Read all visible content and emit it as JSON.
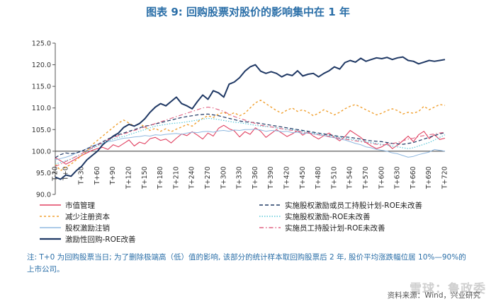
{
  "title": "图表 9:  回购股票对股价的影响集中在 1 年",
  "note": "注: T+0 为回购股票当日; 为了删除极端高（低）值的影响, 该部分的统计样本取回购股票后 2 年, 股价平均涨跌幅位居 10%—90%的上市公司。",
  "source": "资料来源：Wind，兴业研究",
  "watermark": "雪球：鲁政委",
  "colors": {
    "roe_buyback": "#1f3864",
    "reduce_capital": "#f0a030",
    "equity_incentive_or_esop": "#1f3864",
    "equity_incentive": "#5bc8d8",
    "employee_stock": "#e06080",
    "market_value": "#e04060",
    "cancel": "#8fb8e0"
  },
  "chart_data": {
    "type": "line",
    "ylim": [
      90,
      125
    ],
    "yticks": [
      "90.0",
      "95.0",
      "100.0",
      "105.0",
      "110.0",
      "115.0",
      "120.0",
      "125.0"
    ],
    "xticks": [
      "T-20",
      "T+0",
      "T+30",
      "T+60",
      "T+90",
      "T+120",
      "T+150",
      "T+180",
      "T+210",
      "T+240",
      "T+270",
      "T+300",
      "T+330",
      "T+360",
      "T+390",
      "T+420",
      "T+450",
      "T+480",
      "T+510",
      "T+540",
      "T+570",
      "T+600",
      "T+630",
      "T+660",
      "T+690",
      "T+720"
    ],
    "xlim": [
      -20,
      720
    ],
    "series": [
      {
        "name": "市值管理",
        "color_key": "market_value",
        "dash": "solid",
        "width": 1.1,
        "x": [
          -20,
          -10,
          0,
          10,
          20,
          30,
          40,
          50,
          60,
          70,
          80,
          90,
          100,
          110,
          120,
          130,
          140,
          150,
          160,
          170,
          180,
          190,
          200,
          210,
          220,
          230,
          240,
          250,
          260,
          270,
          280,
          290,
          300,
          310,
          320,
          330,
          340,
          350,
          360,
          370,
          380,
          390,
          400,
          410,
          420,
          430,
          440,
          450,
          460,
          470,
          480,
          490,
          500,
          510,
          520,
          530,
          540,
          550,
          560,
          570,
          580,
          590,
          600,
          610,
          620,
          630,
          640,
          650,
          660,
          670,
          680,
          690,
          700,
          710,
          720
        ],
        "y": [
          98.5,
          97.8,
          97.0,
          97.6,
          98.3,
          99.0,
          99.6,
          100.2,
          100.6,
          100.9,
          100.4,
          101.5,
          101.0,
          101.8,
          102.6,
          101.2,
          102.1,
          101.7,
          102.9,
          103.2,
          102.5,
          102.8,
          101.9,
          103.0,
          104.0,
          103.6,
          104.5,
          103.7,
          102.8,
          104.2,
          103.5,
          105.3,
          106.0,
          105.2,
          104.7,
          103.3,
          104.5,
          103.9,
          105.4,
          104.6,
          103.2,
          104.1,
          105.0,
          104.2,
          103.4,
          104.0,
          104.8,
          103.7,
          104.5,
          103.5,
          102.8,
          103.6,
          104.2,
          103.2,
          102.4,
          103.4,
          104.8,
          104.0,
          103.2,
          102.0,
          101.2,
          100.6,
          101.0,
          101.8,
          100.6,
          101.4,
          102.4,
          103.5,
          102.2,
          103.8,
          104.6,
          102.9,
          103.8,
          102.7,
          103.0
        ]
      },
      {
        "name": "减少注册资本",
        "color_key": "reduce_capital",
        "dash": "3,3",
        "width": 1.4,
        "x": [
          -20,
          -10,
          0,
          10,
          20,
          30,
          40,
          50,
          60,
          70,
          80,
          90,
          100,
          110,
          120,
          130,
          140,
          150,
          160,
          170,
          180,
          190,
          200,
          210,
          220,
          230,
          240,
          250,
          260,
          270,
          280,
          290,
          300,
          310,
          320,
          330,
          340,
          350,
          360,
          370,
          380,
          390,
          400,
          410,
          420,
          430,
          440,
          450,
          460,
          470,
          480,
          490,
          500,
          510,
          520,
          530,
          540,
          550,
          560,
          570,
          580,
          590,
          600,
          610,
          620,
          630,
          640,
          650,
          660,
          670,
          680,
          690,
          700,
          710,
          720
        ],
        "y": [
          97.0,
          95.5,
          96.3,
          97.0,
          98.0,
          99.0,
          100.0,
          101.5,
          102.5,
          103.5,
          104.5,
          105.5,
          106.5,
          107.2,
          106.5,
          105.8,
          106.4,
          105.6,
          104.8,
          105.3,
          104.6,
          105.2,
          104.5,
          105.1,
          105.6,
          106.2,
          105.8,
          106.8,
          107.6,
          108.2,
          107.8,
          108.6,
          109.0,
          108.4,
          108.9,
          108.2,
          108.8,
          110.0,
          111.2,
          111.8,
          111.0,
          110.2,
          109.4,
          108.8,
          109.5,
          110.0,
          109.2,
          109.6,
          109.0,
          108.2,
          108.8,
          109.6,
          109.0,
          108.4,
          109.0,
          109.8,
          110.4,
          110.8,
          110.2,
          109.6,
          109.0,
          108.4,
          108.8,
          109.4,
          109.8,
          109.4,
          108.6,
          109.0,
          108.8,
          109.2,
          110.4,
          109.6,
          110.2,
          110.8,
          110.6
        ]
      },
      {
        "name": "股权激励注销",
        "color_key": "cancel",
        "dash": "solid",
        "width": 1.0,
        "x": [
          -20,
          -10,
          0,
          10,
          20,
          30,
          40,
          50,
          60,
          70,
          80,
          90,
          100,
          110,
          120,
          130,
          140,
          150,
          160,
          170,
          180,
          190,
          200,
          210,
          220,
          230,
          240,
          250,
          260,
          270,
          280,
          290,
          300,
          310,
          320,
          330,
          340,
          350,
          360,
          370,
          380,
          390,
          400,
          410,
          420,
          430,
          440,
          450,
          460,
          470,
          480,
          490,
          500,
          510,
          520,
          530,
          540,
          550,
          560,
          570,
          580,
          590,
          600,
          610,
          620,
          630,
          640,
          650,
          660,
          670,
          680,
          690,
          700,
          710,
          720
        ],
        "y": [
          98.0,
          98.3,
          98.6,
          99.0,
          99.6,
          100.0,
          100.6,
          101.2,
          101.6,
          101.9,
          102.2,
          102.4,
          102.7,
          103.0,
          103.1,
          103.3,
          103.4,
          103.6,
          103.5,
          103.8,
          103.7,
          103.9,
          104.0,
          104.1,
          103.9,
          104.2,
          104.4,
          104.3,
          104.5,
          104.6,
          104.4,
          104.7,
          104.8,
          104.6,
          104.9,
          104.8,
          105.0,
          105.0,
          105.1,
          104.9,
          104.6,
          104.8,
          104.7,
          104.5,
          104.6,
          104.3,
          104.4,
          104.1,
          104.2,
          104.0,
          103.8,
          103.6,
          103.3,
          103.1,
          102.8,
          102.6,
          102.2,
          101.8,
          101.5,
          101.0,
          100.8,
          100.4,
          100.2,
          100.0,
          99.6,
          99.4,
          99.0,
          98.6,
          98.8,
          99.2,
          99.5,
          99.8,
          100.4,
          100.2,
          100.0
        ]
      },
      {
        "name": "激励性回购-ROE改善",
        "color_key": "roe_buyback",
        "dash": "solid",
        "width": 2.0,
        "x": [
          -20,
          -10,
          0,
          10,
          20,
          30,
          40,
          50,
          60,
          70,
          80,
          90,
          100,
          110,
          120,
          130,
          140,
          150,
          160,
          170,
          180,
          190,
          200,
          210,
          220,
          230,
          240,
          250,
          260,
          270,
          280,
          290,
          300,
          310,
          320,
          330,
          340,
          350,
          360,
          370,
          380,
          390,
          400,
          410,
          420,
          430,
          440,
          450,
          460,
          470,
          480,
          490,
          500,
          510,
          520,
          530,
          540,
          550,
          560,
          570,
          580,
          590,
          600,
          610,
          620,
          630,
          640,
          650,
          660,
          670,
          680,
          690,
          700,
          710,
          720
        ],
        "y": [
          94.0,
          93.5,
          94.5,
          94.2,
          95.5,
          96.5,
          98.0,
          99.0,
          100.0,
          101.5,
          102.5,
          103.5,
          104.2,
          105.5,
          106.2,
          105.8,
          106.4,
          107.5,
          109.0,
          110.2,
          111.0,
          110.5,
          111.5,
          112.5,
          111.0,
          110.5,
          109.8,
          111.5,
          113.0,
          112.0,
          114.0,
          113.5,
          112.5,
          115.5,
          116.0,
          117.0,
          118.5,
          119.5,
          120.0,
          118.5,
          118.0,
          118.4,
          118.0,
          117.2,
          117.8,
          117.5,
          118.6,
          117.4,
          117.8,
          118.0,
          117.2,
          118.0,
          118.6,
          119.5,
          119.0,
          120.5,
          121.0,
          120.6,
          121.5,
          120.8,
          121.2,
          121.6,
          121.4,
          121.7,
          121.2,
          121.6,
          121.8,
          121.0,
          120.8,
          120.2,
          120.6,
          121.0,
          120.8,
          121.0,
          121.2
        ]
      },
      {
        "name": "实施股权激励或员工持股计划-ROE未改善",
        "color_key": "equity_incentive_or_esop",
        "dash": "5,3",
        "width": 1.2,
        "x": [
          -20,
          -10,
          0,
          10,
          20,
          30,
          40,
          50,
          60,
          70,
          80,
          90,
          100,
          110,
          120,
          130,
          140,
          150,
          160,
          170,
          180,
          190,
          200,
          210,
          220,
          230,
          240,
          250,
          260,
          270,
          280,
          290,
          300,
          310,
          320,
          330,
          340,
          350,
          360,
          370,
          380,
          390,
          400,
          410,
          420,
          430,
          440,
          450,
          460,
          470,
          480,
          490,
          500,
          510,
          520,
          530,
          540,
          550,
          560,
          570,
          580,
          590,
          600,
          610,
          620,
          630,
          640,
          650,
          660,
          670,
          680,
          690,
          700,
          710,
          720
        ],
        "y": [
          98.5,
          99.2,
          99.6,
          99.4,
          99.6,
          100.0,
          100.6,
          101.0,
          101.5,
          102.2,
          102.8,
          103.4,
          103.8,
          104.2,
          104.6,
          105.0,
          105.4,
          105.8,
          106.0,
          106.3,
          106.6,
          106.9,
          107.2,
          107.5,
          107.8,
          108.0,
          108.2,
          108.4,
          108.5,
          108.6,
          108.4,
          108.2,
          107.9,
          107.6,
          107.3,
          107.0,
          106.8,
          106.7,
          106.6,
          106.4,
          106.2,
          106.0,
          105.8,
          105.6,
          105.4,
          105.2,
          105.0,
          104.8,
          104.6,
          104.4,
          104.2,
          104.0,
          103.8,
          103.6,
          103.4,
          103.3,
          103.2,
          103.0,
          102.8,
          102.6,
          102.4,
          102.3,
          102.2,
          102.0,
          101.8,
          101.7,
          101.6,
          101.8,
          102.0,
          102.4,
          102.8,
          103.2,
          103.6,
          104.0,
          104.3
        ]
      },
      {
        "name": "实施股权激励-ROE未改善",
        "color_key": "equity_incentive",
        "dash": "1.5,2",
        "width": 1.2,
        "x": [
          -20,
          -10,
          0,
          10,
          20,
          30,
          40,
          50,
          60,
          70,
          80,
          90,
          100,
          110,
          120,
          130,
          140,
          150,
          160,
          170,
          180,
          190,
          200,
          210,
          220,
          230,
          240,
          250,
          260,
          270,
          280,
          290,
          300,
          310,
          320,
          330,
          340,
          350,
          360,
          370,
          380,
          390,
          400,
          410,
          420,
          430,
          440,
          450,
          460,
          470,
          480,
          490,
          500,
          510,
          520,
          530,
          540,
          550,
          560,
          570,
          580,
          590,
          600,
          610,
          620,
          630,
          640,
          650,
          660,
          670,
          680,
          690,
          700,
          710,
          720
        ],
        "y": [
          97.0,
          97.4,
          97.8,
          98.2,
          98.8,
          99.4,
          100.0,
          100.6,
          101.2,
          101.8,
          102.4,
          102.8,
          103.2,
          103.4,
          103.8,
          104.2,
          104.6,
          105.0,
          105.4,
          105.8,
          106.0,
          106.2,
          106.4,
          106.5,
          106.6,
          106.8,
          107.0,
          107.2,
          107.4,
          107.6,
          107.5,
          107.3,
          107.1,
          106.9,
          106.7,
          106.6,
          106.4,
          106.2,
          106.0,
          105.8,
          105.7,
          105.6,
          105.4,
          105.2,
          105.1,
          105.0,
          104.8,
          104.6,
          104.4,
          104.2,
          104.0,
          103.8,
          103.6,
          103.4,
          103.2,
          103.0,
          102.8,
          102.6,
          102.4,
          102.2,
          102.0,
          101.8,
          101.6,
          101.4,
          101.2,
          101.0,
          100.8,
          100.6,
          100.8,
          101.2,
          101.6,
          102.0,
          102.6,
          103.2,
          103.8
        ]
      },
      {
        "name": "实施员工持股计划-ROE未改善",
        "color_key": "employee_stock",
        "dash": "6,3,1.5,3",
        "width": 1.1,
        "x": [
          -20,
          -10,
          0,
          10,
          20,
          30,
          40,
          50,
          60,
          70,
          80,
          90,
          100,
          110,
          120,
          130,
          140,
          150,
          160,
          170,
          180,
          190,
          200,
          210,
          220,
          230,
          240,
          250,
          260,
          270,
          280,
          290,
          300,
          310,
          320,
          330,
          340,
          350,
          360,
          370,
          380,
          390,
          400,
          410,
          420,
          430,
          440,
          450,
          460,
          470,
          480,
          490,
          500,
          510,
          520,
          530,
          540,
          550,
          560,
          570,
          580,
          590,
          600,
          610,
          620,
          630,
          640,
          650,
          660,
          670,
          680,
          690,
          700,
          710,
          720
        ],
        "y": [
          96.5,
          97.0,
          97.6,
          98.2,
          98.8,
          99.4,
          100.2,
          100.8,
          101.4,
          102.0,
          102.6,
          103.2,
          103.6,
          104.0,
          104.4,
          104.8,
          105.2,
          105.6,
          106.0,
          106.4,
          106.8,
          107.2,
          107.6,
          108.0,
          108.4,
          108.8,
          109.2,
          109.6,
          110.0,
          110.2,
          110.0,
          109.6,
          109.2,
          108.6,
          108.0,
          107.6,
          107.2,
          106.8,
          106.4,
          106.0,
          105.8,
          105.6,
          105.4,
          105.2,
          105.0,
          104.8,
          104.6,
          104.4,
          104.2,
          104.0,
          103.8,
          103.6,
          103.4,
          103.2,
          103.0,
          102.8,
          102.6,
          102.4,
          102.2,
          102.0,
          101.8,
          101.6,
          101.4,
          101.6,
          101.8,
          102.0,
          102.4,
          102.8,
          103.0,
          103.4,
          103.6,
          103.8,
          104.0,
          104.2,
          104.4
        ]
      }
    ],
    "legend": [
      {
        "label": "市值管理",
        "series": 0
      },
      {
        "label": "实施股权激励或员工持股计划-ROE未改善",
        "series": 4
      },
      {
        "label": "减少注册资本",
        "series": 1
      },
      {
        "label": "实施股权激励-ROE未改善",
        "series": 5
      },
      {
        "label": "股权激励注销",
        "series": 2
      },
      {
        "label": "实施员工持股计划-ROE未改善",
        "series": 6
      },
      {
        "label": "激励性回购-ROE改善",
        "series": 3
      }
    ]
  }
}
